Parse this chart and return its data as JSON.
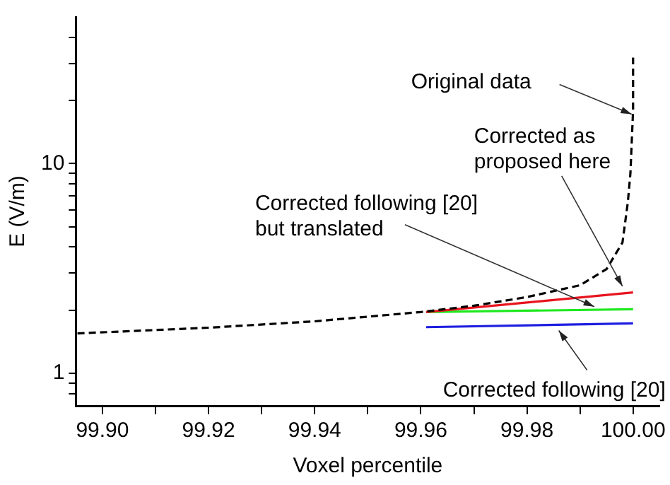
{
  "chart_data": {
    "type": "line",
    "xlabel": "Voxel percentile",
    "ylabel": "E (V/m)",
    "log": "y",
    "grid": false,
    "legend": false,
    "marker": "none",
    "xlim": [
      99.895,
      100.005
    ],
    "xticks": [
      {
        "value": 99.9,
        "label": "99.90"
      },
      {
        "value": 99.91,
        "label": null
      },
      {
        "value": 99.92,
        "label": "99.92"
      },
      {
        "value": 99.93,
        "label": null
      },
      {
        "value": 99.94,
        "label": "99.94"
      },
      {
        "value": 99.95,
        "label": null
      },
      {
        "value": 99.96,
        "label": "99.96"
      },
      {
        "value": 99.97,
        "label": null
      },
      {
        "value": 99.98,
        "label": "99.98"
      },
      {
        "value": 99.99,
        "label": null
      },
      {
        "value": 100,
        "label": "100.00"
      }
    ],
    "ylim": [
      0.7,
      50
    ],
    "yticks": [
      {
        "value": 0.8,
        "label": null
      },
      {
        "value": 0.9,
        "label": null
      },
      1,
      {
        "value": 2,
        "label": null
      },
      {
        "value": 3,
        "label": null
      },
      {
        "value": 4,
        "label": null
      },
      {
        "value": 5,
        "label": null
      },
      {
        "value": 6,
        "label": null
      },
      {
        "value": 7,
        "label": null
      },
      {
        "value": 8,
        "label": null
      },
      {
        "value": 9,
        "label": null
      },
      10,
      {
        "value": 20,
        "label": null
      },
      {
        "value": 30,
        "label": null
      },
      {
        "value": 40,
        "label": null
      }
    ],
    "series": [
      {
        "color": "#000000",
        "line_style": "dashed",
        "x": [
          99.8953,
          99.92,
          99.94,
          99.96,
          99.97,
          99.98,
          99.99,
          99.995,
          99.998,
          99.999,
          99.9995,
          100,
          100
        ],
        "values": [
          1.55,
          1.65,
          1.77,
          1.96,
          2.1,
          2.31,
          2.63,
          3.14,
          4.2,
          6.5,
          9,
          18,
          32
        ]
      },
      {
        "color": "#e8141e",
        "line_style": "solid",
        "x": [
          99.961,
          100
        ],
        "values": [
          1.96,
          2.43
        ]
      },
      {
        "color": "#1ee81e",
        "line_style": "solid",
        "x": [
          99.961,
          100
        ],
        "values": [
          1.96,
          2.02
        ]
      },
      {
        "color": "#1e1ee0",
        "line_style": "solid",
        "x": [
          99.961,
          100
        ],
        "values": [
          1.66,
          1.73
        ]
      }
    ],
    "annotations": [
      "Original data",
      {
        "text": "Corrected as proposed here",
        "x": 99.998,
        "y": 2.6
      },
      {
        "text": "Corrected following [20] but translated",
        "x": 99.9927,
        "y": 2.08
      },
      {
        "text": "Corrected following [20]",
        "x": 99.986,
        "y": 1.6
      }
    ]
  }
}
